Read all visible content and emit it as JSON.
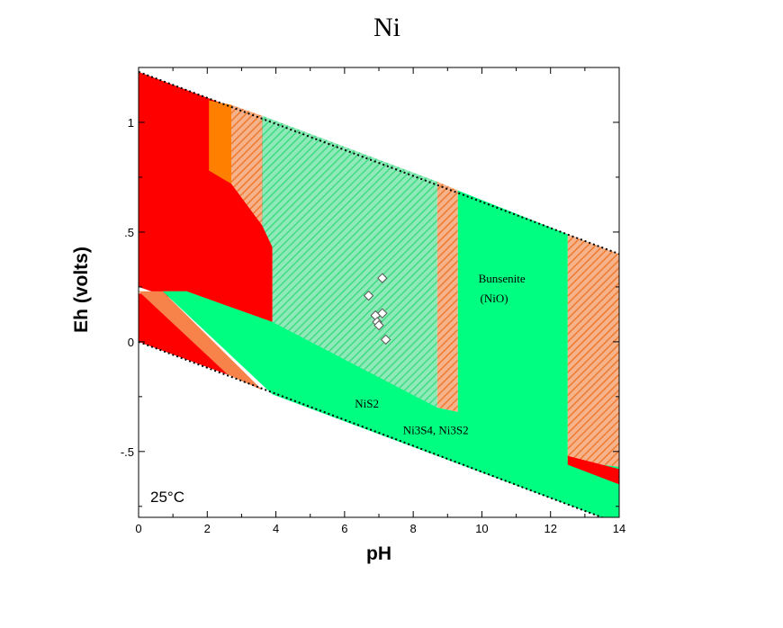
{
  "chart_data": {
    "type": "scatter",
    "title": "Ni",
    "xlabel": "pH",
    "ylabel": "Eh (volts)",
    "xlim": [
      0,
      14
    ],
    "ylim": [
      -0.8,
      1.25
    ],
    "xticks": [
      0,
      2,
      4,
      6,
      8,
      10,
      12,
      14
    ],
    "xtick_labels": [
      "0",
      "2",
      "4",
      "6",
      "8",
      "10",
      "12",
      "14"
    ],
    "yticks": [
      1.0,
      0.5,
      0.0,
      -0.5
    ],
    "ytick_labels": [
      "1",
      ".5",
      "0",
      "-.5"
    ],
    "temperature_label": "25°C",
    "region_labels": [
      {
        "text": "Bunsenite",
        "x": 9.9,
        "y": 0.27
      },
      {
        "text": "(NiO)",
        "x": 9.95,
        "y": 0.18
      },
      {
        "text": "NiS2",
        "x": 6.3,
        "y": -0.3
      },
      {
        "text": "Ni3S4, Ni3S2",
        "x": 7.7,
        "y": -0.42
      }
    ],
    "points": [
      {
        "x": 7.1,
        "y": 0.29
      },
      {
        "x": 6.7,
        "y": 0.21
      },
      {
        "x": 7.1,
        "y": 0.13
      },
      {
        "x": 6.9,
        "y": 0.12
      },
      {
        "x": 6.95,
        "y": 0.09
      },
      {
        "x": 7.0,
        "y": 0.075
      },
      {
        "x": 7.2,
        "y": 0.01
      }
    ],
    "water_stability": {
      "upper_line": [
        [
          0,
          1.23
        ],
        [
          14,
          0.4
        ]
      ],
      "lower_line": [
        [
          0,
          0.0
        ],
        [
          14,
          -0.83
        ]
      ]
    },
    "regions": [
      {
        "name": "red",
        "color": "#ff0000",
        "pattern": "solid",
        "polygon": [
          [
            0,
            1.23
          ],
          [
            3.9,
            1.0
          ],
          [
            3.9,
            0.04
          ],
          [
            0,
            0.25
          ]
        ]
      },
      {
        "name": "red-lower",
        "color": "#ff0000",
        "pattern": "solid",
        "polygon": [
          [
            0,
            0.22
          ],
          [
            0.7,
            0.22
          ],
          [
            2.6,
            -0.15
          ],
          [
            0,
            0.0
          ]
        ]
      },
      {
        "name": "salmon-wedge",
        "color": "#f7824a",
        "pattern": "solid",
        "polygon": [
          [
            0,
            0.23
          ],
          [
            0.7,
            0.23
          ],
          [
            3.6,
            -0.22
          ],
          [
            2.6,
            -0.15
          ]
        ]
      },
      {
        "name": "salmon-line",
        "color": "#f7824a",
        "pattern": "solid",
        "polygon": [
          [
            0.7,
            0.23
          ],
          [
            1.4,
            0.23
          ],
          [
            3.9,
            0.09
          ],
          [
            3.9,
            0.04
          ]
        ]
      },
      {
        "name": "orange",
        "color": "#ff8000",
        "pattern": "solid",
        "polygon": [
          [
            2.05,
            1.1
          ],
          [
            2.7,
            1.08
          ],
          [
            2.7,
            0.72
          ],
          [
            2.05,
            0.78
          ]
        ]
      },
      {
        "name": "orange-hatched-1",
        "color": "#f28c3c",
        "pattern": "hatch",
        "polygon": [
          [
            2.7,
            1.08
          ],
          [
            3.6,
            1.03
          ],
          [
            3.6,
            0.53
          ],
          [
            2.7,
            0.72
          ]
        ]
      },
      {
        "name": "green-hatched",
        "color": "#5ee49a",
        "pattern": "hatch",
        "polygon": [
          [
            3.6,
            1.03
          ],
          [
            8.7,
            0.73
          ],
          [
            8.7,
            -0.3
          ],
          [
            3.9,
            0.04
          ],
          [
            3.9,
            0.43
          ],
          [
            3.6,
            0.53
          ]
        ]
      },
      {
        "name": "orange-hatched-2",
        "color": "#f28c3c",
        "pattern": "hatch",
        "polygon": [
          [
            8.7,
            0.73
          ],
          [
            9.3,
            0.69
          ],
          [
            9.3,
            -0.32
          ],
          [
            8.7,
            -0.3
          ]
        ]
      },
      {
        "name": "green",
        "color": "#00ff80",
        "pattern": "solid",
        "polygon": [
          [
            9.3,
            0.69
          ],
          [
            12.5,
            0.49
          ],
          [
            12.5,
            -0.54
          ],
          [
            14,
            -0.57
          ],
          [
            14,
            -0.83
          ],
          [
            3.9,
            -0.24
          ],
          [
            0.7,
            0.23
          ],
          [
            1.4,
            0.23
          ],
          [
            3.9,
            0.09
          ],
          [
            8.7,
            -0.3
          ],
          [
            9.3,
            -0.32
          ]
        ]
      },
      {
        "name": "orange-hatched-3",
        "color": "#f28c3c",
        "pattern": "hatch",
        "polygon": [
          [
            12.5,
            0.49
          ],
          [
            14,
            0.4
          ],
          [
            14,
            -0.57
          ],
          [
            12.5,
            -0.54
          ]
        ]
      },
      {
        "name": "red-right",
        "color": "#ff0000",
        "pattern": "solid",
        "polygon": [
          [
            12.5,
            -0.52
          ],
          [
            14,
            -0.58
          ],
          [
            14,
            -0.65
          ],
          [
            12.5,
            -0.56
          ]
        ]
      }
    ],
    "grid": false
  }
}
